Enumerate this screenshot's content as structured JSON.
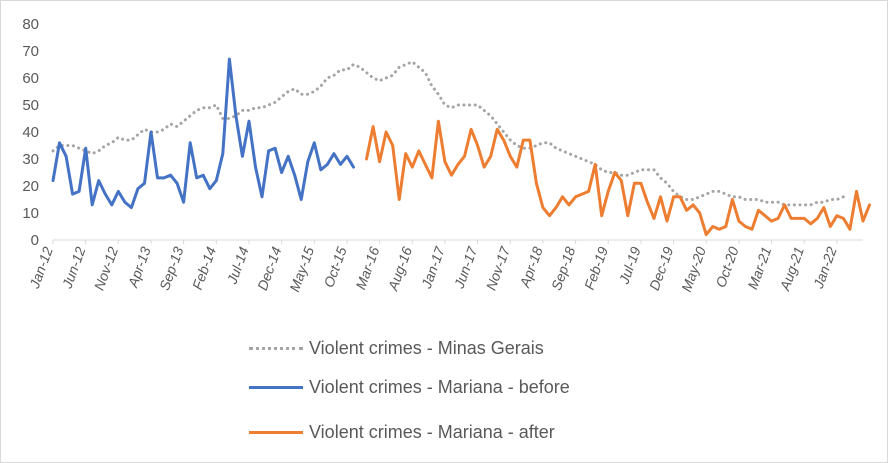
{
  "chart_data": {
    "type": "line",
    "title": "",
    "xlabel": "",
    "ylabel": "",
    "ylim": [
      0,
      80
    ],
    "yticks": [
      0,
      10,
      20,
      30,
      40,
      50,
      60,
      70,
      80
    ],
    "grid": false,
    "legend_position": "bottom",
    "x_tick_labels": [
      "Jan-12",
      "Jun-12",
      "Nov-12",
      "Apr-13",
      "Sep-13",
      "Feb-14",
      "Jul-14",
      "Dec-14",
      "May-15",
      "Oct-15",
      "Mar-16",
      "Aug-16",
      "Jan-17",
      "Jun-17",
      "Nov-17",
      "Apr-18",
      "Sep-18",
      "Feb-19",
      "Jul-19",
      "Dec-19",
      "May-20",
      "Oct-20",
      "Mar-21",
      "Aug-21",
      "Jan-22"
    ],
    "x_start": "Jan-12",
    "series": [
      {
        "name": "Violent crimes - Minas Gerais",
        "color": "#a5a5a5",
        "style": "dotted",
        "start_index": 0,
        "values": [
          33,
          35,
          35,
          35,
          34,
          33,
          32,
          33,
          35,
          36,
          38,
          37,
          37,
          39,
          41,
          40,
          40,
          41,
          43,
          42,
          44,
          46,
          48,
          49,
          49,
          50,
          45,
          45,
          46,
          48,
          48,
          49,
          49,
          50,
          51,
          53,
          55,
          56,
          54,
          54,
          55,
          57,
          60,
          61,
          63,
          63,
          65,
          64,
          62,
          60,
          59,
          60,
          61,
          64,
          65,
          66,
          64,
          62,
          57,
          54,
          50,
          49,
          50,
          50,
          50,
          50,
          48,
          46,
          43,
          40,
          37,
          35,
          34,
          34,
          35,
          36,
          36,
          34,
          33,
          32,
          31,
          30,
          29,
          28,
          26,
          25,
          25,
          24,
          24,
          25,
          26,
          26,
          26,
          23,
          21,
          18,
          16,
          15,
          15,
          16,
          17,
          18,
          18,
          17,
          16,
          16,
          15,
          15,
          15,
          14,
          14,
          14,
          13,
          13,
          13,
          13,
          13,
          14,
          14,
          15,
          15,
          16
        ]
      },
      {
        "name": "Violent crimes - Mariana - before",
        "color": "#4472c4",
        "style": "solid",
        "start_index": 0,
        "values": [
          22,
          36,
          31,
          17,
          18,
          34,
          13,
          22,
          17,
          13,
          18,
          14,
          12,
          19,
          21,
          40,
          23,
          23,
          24,
          21,
          14,
          36,
          23,
          24,
          19,
          22,
          32,
          67,
          46,
          31,
          44,
          27,
          16,
          33,
          34,
          25,
          31,
          24,
          15,
          29,
          36,
          26,
          28,
          32,
          28,
          31,
          27
        ]
      },
      {
        "name": "Violent crimes - Mariana - after",
        "color": "#ed7d31",
        "style": "solid",
        "start_index": 48,
        "values": [
          30,
          42,
          29,
          40,
          35,
          15,
          32,
          27,
          33,
          28,
          23,
          44,
          29,
          24,
          28,
          31,
          41,
          35,
          27,
          31,
          41,
          37,
          31,
          27,
          37,
          37,
          21,
          12,
          9,
          12,
          16,
          13,
          16,
          17,
          18,
          28,
          9,
          18,
          25,
          22,
          9,
          21,
          21,
          14,
          8,
          16,
          7,
          16,
          16,
          11,
          13,
          10,
          2,
          5,
          4,
          5,
          15,
          7,
          5,
          4,
          11,
          9,
          7,
          8,
          13,
          8,
          8,
          8,
          6,
          8,
          12,
          5,
          9,
          8,
          4,
          18,
          7,
          13
        ]
      }
    ]
  }
}
